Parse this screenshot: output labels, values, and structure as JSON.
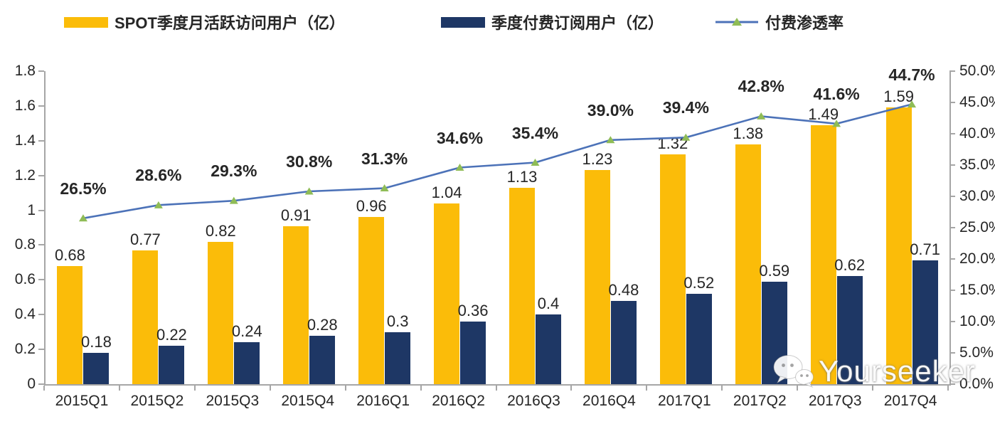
{
  "legend": [
    {
      "label": "SPOT季度月活跃访问用户（亿）",
      "type": "bar",
      "color": "#FBBC09"
    },
    {
      "label": "季度付费订阅用户（亿）",
      "type": "bar",
      "color": "#1E3765"
    },
    {
      "label": "付费渗透率",
      "type": "line",
      "color": "#4C72B8",
      "marker_color": "#8FBC56"
    }
  ],
  "watermark": {
    "text": "Yourseeker",
    "icon": "wechat-chat-bubbles"
  },
  "colors": {
    "mau_bar": "#FBBC09",
    "subs_bar": "#1E3765",
    "rate_line": "#4C72B8",
    "rate_marker": "#8FBC56",
    "axis": "#A6A6A6",
    "text": "#262626"
  },
  "chart_data": {
    "type": "bar",
    "subtype": "combo-bar-line-dual-axis",
    "title": "",
    "categories": [
      "2015Q1",
      "2015Q2",
      "2015Q3",
      "2015Q4",
      "2016Q1",
      "2016Q2",
      "2016Q3",
      "2016Q4",
      "2017Q1",
      "2017Q2",
      "2017Q3",
      "2017Q4"
    ],
    "series": [
      {
        "name": "SPOT季度月活跃访问用户（亿）",
        "type": "bar",
        "axis": "left",
        "color": "#FBBC09",
        "values": [
          0.68,
          0.77,
          0.82,
          0.91,
          0.96,
          1.04,
          1.13,
          1.23,
          1.32,
          1.38,
          1.49,
          1.59
        ],
        "labels": [
          "0.68",
          "0.77",
          "0.82",
          "0.91",
          "0.96",
          "1.04",
          "1.13",
          "1.23",
          "1.32",
          "1.38",
          "1.49",
          "1.59"
        ]
      },
      {
        "name": "季度付费订阅用户（亿）",
        "type": "bar",
        "axis": "left",
        "color": "#1E3765",
        "values": [
          0.18,
          0.22,
          0.24,
          0.28,
          0.3,
          0.36,
          0.4,
          0.48,
          0.52,
          0.59,
          0.62,
          0.71
        ],
        "labels": [
          "0.18",
          "0.22",
          "0.24",
          "0.28",
          "0.3",
          "0.36",
          "0.4",
          "0.48",
          "0.52",
          "0.59",
          "0.62",
          "0.71"
        ]
      },
      {
        "name": "付费渗透率",
        "type": "line",
        "axis": "right",
        "color": "#4C72B8",
        "marker": "triangle",
        "marker_color": "#8FBC56",
        "values": [
          26.5,
          28.6,
          29.3,
          30.8,
          31.3,
          34.6,
          35.4,
          39.0,
          39.4,
          42.8,
          41.6,
          44.7
        ],
        "labels": [
          "26.5%",
          "28.6%",
          "29.3%",
          "30.8%",
          "31.3%",
          "34.6%",
          "35.4%",
          "39.0%",
          "39.4%",
          "42.8%",
          "41.6%",
          "44.7%"
        ]
      }
    ],
    "left_axis": {
      "min": 0,
      "max": 1.8,
      "ticks": [
        "1.8",
        "1.6",
        "1.4",
        "1.2",
        "1",
        "0.8",
        "0.6",
        "0.4",
        "0.2",
        "0"
      ]
    },
    "right_axis": {
      "min": 0,
      "max": 50,
      "ticks": [
        "50.0%",
        "45.0%",
        "40.0%",
        "35.0%",
        "30.0%",
        "25.0%",
        "20.0%",
        "15.0%",
        "10.0%",
        "5.0%",
        "0.0%"
      ]
    },
    "grid": false,
    "legend_position": "top"
  }
}
